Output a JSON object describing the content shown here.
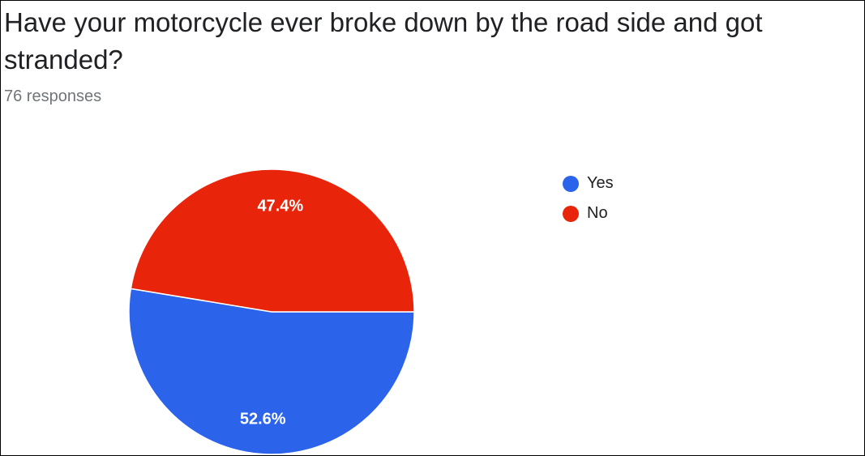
{
  "question": {
    "title": "Have your motorcycle ever broke down by the road side and got stranded?",
    "responses": "76 responses"
  },
  "chart_data": {
    "type": "pie",
    "categories": [
      "Yes",
      "No"
    ],
    "values": [
      52.6,
      47.4
    ],
    "labels": [
      "52.6%",
      "47.4%"
    ],
    "colors": [
      "#2b63eb",
      "#e8240a"
    ],
    "legend_position": "right"
  }
}
